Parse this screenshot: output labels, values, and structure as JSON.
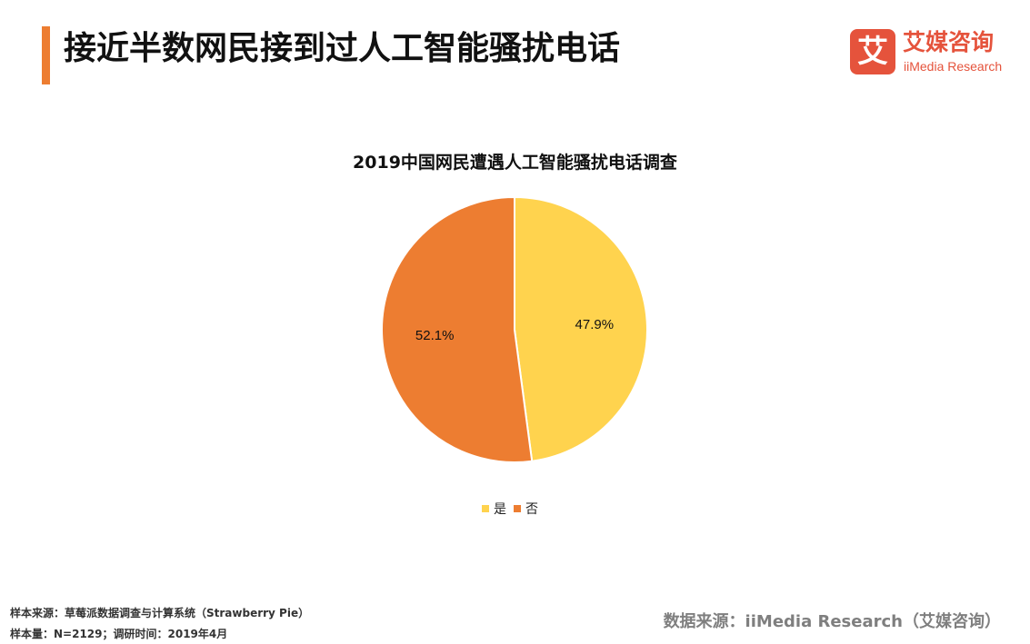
{
  "header": {
    "title": "接近半数网民接到过人工智能骚扰电话",
    "accent_color": "#ED7D31"
  },
  "brand": {
    "mark_glyph": "艾",
    "name": "艾媒咨询",
    "subtitle": "iiMedia Research",
    "color": "#E5533C"
  },
  "chart_data": {
    "type": "pie",
    "title": "2019中国网民遭遇人工智能骚扰电话调查",
    "slices": [
      {
        "label": "是",
        "value": 47.9,
        "display": "47.9%",
        "color": "#FFD34E"
      },
      {
        "label": "否",
        "value": 52.1,
        "display": "52.1%",
        "color": "#ED7D31"
      }
    ],
    "start_angle_deg": 0,
    "direction": "clockwise",
    "legend_position": "bottom"
  },
  "footer": {
    "sample_source": "样本来源：草莓派数据调查与计算系统（Strawberry Pie）",
    "sample_size": "样本量：N=2129；调研时间：2019年4月",
    "data_source": "数据来源：iiMedia Research（艾媒咨询）"
  }
}
